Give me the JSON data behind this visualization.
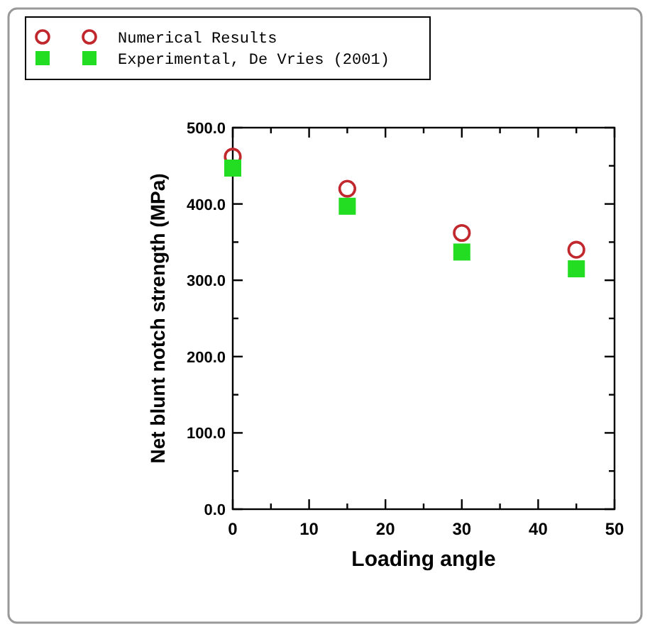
{
  "chart_data": {
    "type": "scatter",
    "xlabel": "Loading angle",
    "ylabel": "Net blunt notch strength (MPa)",
    "x": [
      0,
      15,
      30,
      45
    ],
    "series": [
      {
        "name": "Numerical Results",
        "color": "#c0282d",
        "marker": "circle",
        "values": [
          462,
          420,
          362,
          340
        ]
      },
      {
        "name": "Experimental, De Vries (2001)",
        "color": "#22dd22",
        "marker": "square",
        "values": [
          447,
          397,
          337,
          315
        ]
      }
    ],
    "xlim": [
      0,
      50
    ],
    "xticks": [
      0,
      {
        "value": 5,
        "label": null
      },
      10,
      {
        "value": 15,
        "label": null
      },
      20,
      {
        "value": 25,
        "label": null
      },
      30,
      {
        "value": 35,
        "label": null
      },
      40,
      {
        "value": 45,
        "label": null
      },
      50
    ],
    "ylim": [
      0,
      500
    ],
    "yticks": [
      {
        "value": 0,
        "label": "0.0"
      },
      {
        "value": 50,
        "label": null
      },
      {
        "value": 100,
        "label": "100.0"
      },
      {
        "value": 150,
        "label": null
      },
      {
        "value": 200,
        "label": "200.0"
      },
      {
        "value": 250,
        "label": null
      },
      {
        "value": 300,
        "label": "300.0"
      },
      {
        "value": 350,
        "label": null
      },
      {
        "value": 400,
        "label": "400.0"
      },
      {
        "value": 450,
        "label": null
      },
      {
        "value": 500,
        "label": "500.0"
      }
    ],
    "grid": false,
    "legend": "top left"
  }
}
